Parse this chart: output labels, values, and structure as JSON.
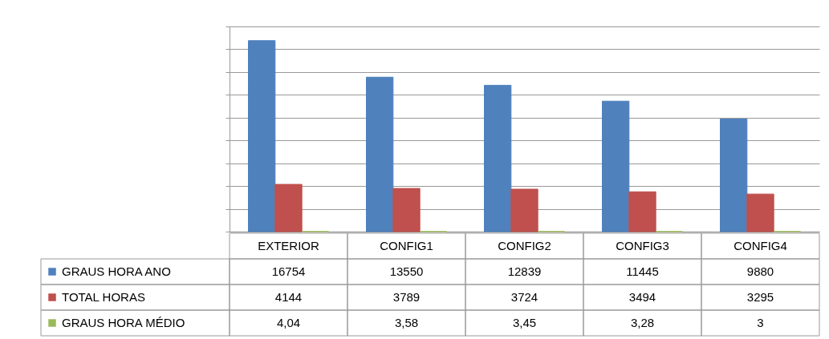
{
  "chart_data": {
    "type": "bar",
    "categories": [
      "EXTERIOR",
      "CONFIG1",
      "CONFIG2",
      "CONFIG3",
      "CONFIG4"
    ],
    "series": [
      {
        "name": "GRAUS HORA ANO",
        "color": "#4f81bd",
        "values": [
          16754,
          13550,
          12839,
          11445,
          9880
        ],
        "value_labels": [
          "16754",
          "13550",
          "12839",
          "11445",
          "9880"
        ]
      },
      {
        "name": "TOTAL HORAS",
        "color": "#c0504d",
        "values": [
          4144,
          3789,
          3724,
          3494,
          3295
        ],
        "value_labels": [
          "4144",
          "3789",
          "3724",
          "3494",
          "3295"
        ]
      },
      {
        "name": "GRAUS HORA MÉDIO",
        "color": "#9bbb59",
        "values": [
          4.04,
          3.58,
          3.45,
          3.28,
          3
        ],
        "value_labels": [
          "4,04",
          "3,58",
          "3,45",
          "3,28",
          "3"
        ]
      }
    ],
    "ylim": [
      0,
      18000
    ],
    "yticks": [
      0,
      2000,
      4000,
      6000,
      8000,
      10000,
      12000,
      14000,
      16000,
      18000
    ],
    "tick_labels": "x",
    "grid": "y",
    "legend": "bottom"
  }
}
